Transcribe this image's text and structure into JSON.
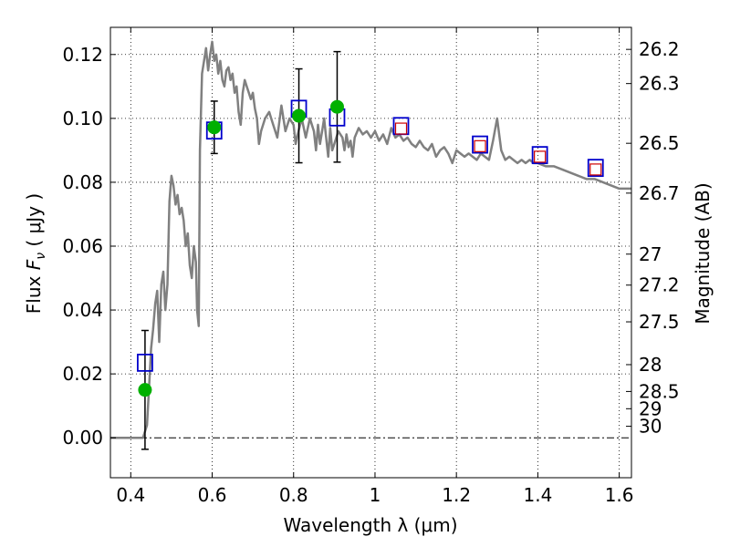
{
  "chart_data": {
    "type": "scatter",
    "xlabel": "Wavelength  λ (μm)",
    "ylabel": "Flux  Fν  ( μJy )",
    "ylabel_parts": {
      "prefix": "Flux  ",
      "symbol": "F",
      "subscript": "ν",
      "suffix": "  ( μJy )"
    },
    "right_ylabel": "Magnitude (AB)",
    "xlim": [
      0.35,
      1.63
    ],
    "ylim": [
      -0.0125,
      0.1285
    ],
    "grid": true,
    "xticks": [
      {
        "value": 0.4,
        "label": "0.4"
      },
      {
        "value": 0.6,
        "label": "0.6"
      },
      {
        "value": 0.8,
        "label": "0.8"
      },
      {
        "value": 1.0,
        "label": "1"
      },
      {
        "value": 1.2,
        "label": "1.2"
      },
      {
        "value": 1.4,
        "label": "1.4"
      },
      {
        "value": 1.6,
        "label": "1.6"
      }
    ],
    "yticks": [
      {
        "value": 0.0,
        "label": "0.00"
      },
      {
        "value": 0.02,
        "label": "0.02"
      },
      {
        "value": 0.04,
        "label": "0.04"
      },
      {
        "value": 0.06,
        "label": "0.06"
      },
      {
        "value": 0.08,
        "label": "0.08"
      },
      {
        "value": 0.1,
        "label": "0.10"
      },
      {
        "value": 0.12,
        "label": "0.12"
      }
    ],
    "right_ticks": [
      {
        "flux": 0.1216,
        "label": "26.2"
      },
      {
        "flux": 0.1109,
        "label": "26.3"
      },
      {
        "flux": 0.0922,
        "label": "26.5"
      },
      {
        "flux": 0.0766,
        "label": "26.7"
      },
      {
        "flux": 0.0575,
        "label": "27"
      },
      {
        "flux": 0.0478,
        "label": "27.2"
      },
      {
        "flux": 0.0363,
        "label": "27.5"
      },
      {
        "flux": 0.0229,
        "label": "28"
      },
      {
        "flux": 0.0145,
        "label": "28.5"
      },
      {
        "flux": 0.0091,
        "label": "29"
      },
      {
        "flux": 0.0036,
        "label": "30"
      }
    ],
    "series": [
      {
        "kind": "model-spectrum",
        "color": "#808080",
        "x": [
          0.35,
          0.41,
          0.42,
          0.43,
          0.44,
          0.445,
          0.45,
          0.455,
          0.46,
          0.465,
          0.47,
          0.475,
          0.48,
          0.485,
          0.49,
          0.495,
          0.5,
          0.505,
          0.51,
          0.515,
          0.52,
          0.525,
          0.53,
          0.535,
          0.54,
          0.545,
          0.55,
          0.555,
          0.56,
          0.563,
          0.567,
          0.57,
          0.575,
          0.58,
          0.585,
          0.59,
          0.595,
          0.6,
          0.605,
          0.61,
          0.615,
          0.62,
          0.625,
          0.63,
          0.635,
          0.64,
          0.645,
          0.65,
          0.655,
          0.66,
          0.665,
          0.67,
          0.675,
          0.68,
          0.685,
          0.69,
          0.695,
          0.7,
          0.705,
          0.71,
          0.715,
          0.72,
          0.73,
          0.74,
          0.75,
          0.76,
          0.77,
          0.775,
          0.78,
          0.79,
          0.8,
          0.805,
          0.81,
          0.82,
          0.83,
          0.84,
          0.85,
          0.855,
          0.86,
          0.865,
          0.87,
          0.875,
          0.88,
          0.885,
          0.89,
          0.895,
          0.9,
          0.91,
          0.92,
          0.925,
          0.93,
          0.935,
          0.94,
          0.945,
          0.95,
          0.96,
          0.97,
          0.98,
          0.99,
          1.0,
          1.01,
          1.02,
          1.03,
          1.04,
          1.05,
          1.06,
          1.07,
          1.08,
          1.09,
          1.1,
          1.11,
          1.12,
          1.13,
          1.14,
          1.15,
          1.16,
          1.17,
          1.18,
          1.19,
          1.2,
          1.21,
          1.22,
          1.23,
          1.24,
          1.25,
          1.26,
          1.27,
          1.28,
          1.29,
          1.3,
          1.31,
          1.32,
          1.33,
          1.34,
          1.35,
          1.36,
          1.37,
          1.38,
          1.39,
          1.4,
          1.42,
          1.44,
          1.46,
          1.48,
          1.5,
          1.52,
          1.54,
          1.56,
          1.58,
          1.6,
          1.61,
          1.63
        ],
        "y": [
          0.0,
          0.0,
          0.0,
          0.0,
          0.004,
          0.016,
          0.028,
          0.034,
          0.042,
          0.046,
          0.03,
          0.048,
          0.052,
          0.04,
          0.048,
          0.074,
          0.082,
          0.079,
          0.073,
          0.076,
          0.07,
          0.072,
          0.068,
          0.06,
          0.064,
          0.054,
          0.05,
          0.06,
          0.055,
          0.04,
          0.035,
          0.09,
          0.114,
          0.118,
          0.122,
          0.115,
          0.12,
          0.124,
          0.118,
          0.12,
          0.114,
          0.118,
          0.112,
          0.11,
          0.115,
          0.116,
          0.112,
          0.114,
          0.108,
          0.11,
          0.102,
          0.098,
          0.108,
          0.112,
          0.11,
          0.108,
          0.106,
          0.108,
          0.103,
          0.1,
          0.092,
          0.096,
          0.1,
          0.102,
          0.098,
          0.094,
          0.104,
          0.1,
          0.096,
          0.1,
          0.098,
          0.092,
          0.095,
          0.1,
          0.094,
          0.1,
          0.096,
          0.09,
          0.098,
          0.092,
          0.096,
          0.1,
          0.094,
          0.088,
          0.097,
          0.09,
          0.092,
          0.096,
          0.094,
          0.09,
          0.095,
          0.091,
          0.093,
          0.088,
          0.094,
          0.097,
          0.095,
          0.096,
          0.094,
          0.096,
          0.093,
          0.095,
          0.092,
          0.097,
          0.094,
          0.095,
          0.093,
          0.094,
          0.092,
          0.091,
          0.093,
          0.091,
          0.09,
          0.092,
          0.088,
          0.09,
          0.091,
          0.089,
          0.086,
          0.09,
          0.089,
          0.088,
          0.089,
          0.088,
          0.087,
          0.089,
          0.088,
          0.087,
          0.093,
          0.1,
          0.09,
          0.087,
          0.088,
          0.087,
          0.086,
          0.087,
          0.086,
          0.087,
          0.086,
          0.086,
          0.085,
          0.085,
          0.084,
          0.083,
          0.082,
          0.081,
          0.081,
          0.08,
          0.079,
          0.078,
          0.078,
          0.078
        ]
      },
      {
        "kind": "observed-photometry",
        "marker": "circle",
        "color": "#00b000",
        "x": [
          0.435,
          0.605,
          0.813,
          0.907
        ],
        "y": [
          0.015,
          0.0972,
          0.1008,
          0.1036
        ],
        "err": [
          0.0186,
          0.0082,
          0.0147,
          0.0173
        ]
      },
      {
        "kind": "model-photometry",
        "marker": "open-square",
        "color": "#0000cc",
        "x": [
          0.435,
          0.605,
          0.813,
          0.907,
          1.064,
          1.258,
          1.405,
          1.542
        ],
        "y": [
          0.0235,
          0.0962,
          0.103,
          0.1003,
          0.0976,
          0.0918,
          0.0885,
          0.0845
        ]
      },
      {
        "kind": "model-photometry-small",
        "marker": "open-square",
        "color": "#cc0000",
        "x": [
          1.064,
          1.258,
          1.405,
          1.542
        ],
        "y": [
          0.0968,
          0.0913,
          0.088,
          0.084
        ]
      }
    ]
  }
}
